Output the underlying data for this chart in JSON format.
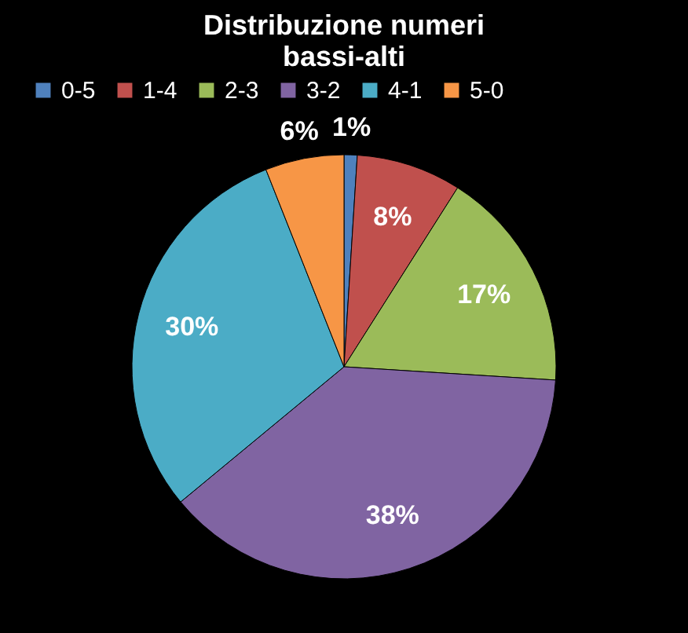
{
  "chart_data": {
    "type": "pie",
    "title": "Distribuzione numeri\nbassi-alti",
    "categories": [
      "0-5",
      "1-4",
      "2-3",
      "3-2",
      "4-1",
      "5-0"
    ],
    "values": [
      1,
      8,
      17,
      38,
      30,
      6
    ],
    "colors": [
      "#4f81bd",
      "#c0504d",
      "#9bbb59",
      "#8064a2",
      "#4bacc6",
      "#f79646"
    ],
    "value_labels": [
      "1%",
      "8%",
      "17%",
      "38%",
      "30%",
      "6%"
    ],
    "legend": "top"
  }
}
